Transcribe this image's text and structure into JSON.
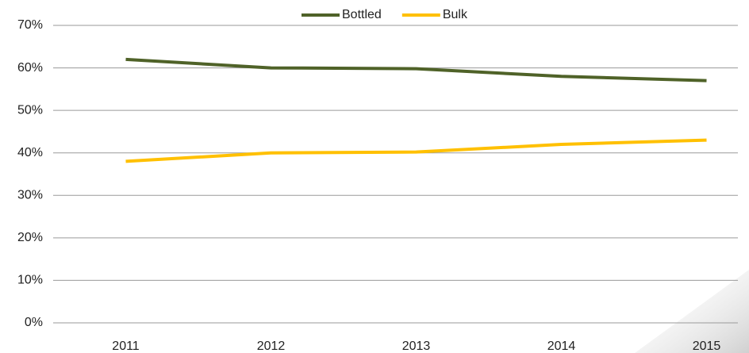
{
  "chart_data": {
    "type": "line",
    "categories": [
      "2011",
      "2012",
      "2013",
      "2014",
      "2015"
    ],
    "series": [
      {
        "name": "Bottled",
        "color": "#4f6228",
        "values": [
          62,
          60,
          59.8,
          58,
          57
        ]
      },
      {
        "name": "Bulk",
        "color": "#ffc000",
        "values": [
          38,
          40,
          40.2,
          42,
          43
        ]
      }
    ],
    "ylim": [
      0,
      70
    ],
    "yticks": [
      {
        "value": 0,
        "label": "0%"
      },
      {
        "value": 10,
        "label": "10%"
      },
      {
        "value": 20,
        "label": "20%"
      },
      {
        "value": 30,
        "label": "30%"
      },
      {
        "value": 40,
        "label": "40%"
      },
      {
        "value": 50,
        "label": "50%"
      },
      {
        "value": 60,
        "label": "60%"
      },
      {
        "value": 70,
        "label": "70%"
      }
    ],
    "grid": true,
    "legend": "top"
  }
}
